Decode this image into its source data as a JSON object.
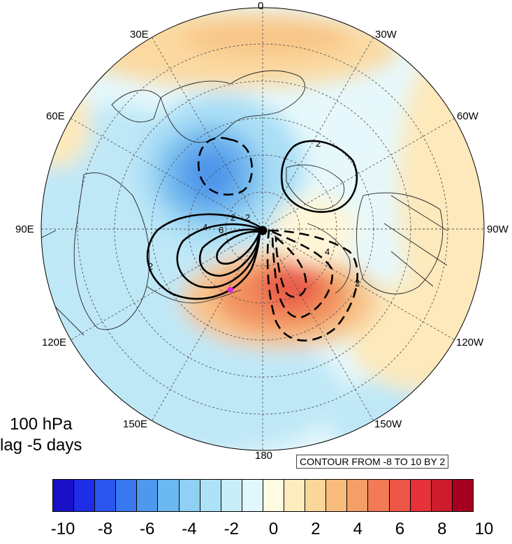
{
  "title": {
    "level": "100 hPa",
    "lag": "lag -5 days"
  },
  "contour_note": "CONTOUR FROM -8 TO 10 BY 2",
  "longitude_labels": [
    "0",
    "30W",
    "60W",
    "90W",
    "120W",
    "150W",
    "180",
    "150E",
    "120E",
    "90E",
    "60E",
    "30E"
  ],
  "contour_labels": [
    "2",
    "2",
    "2",
    "4",
    "6",
    "2",
    "2",
    "4"
  ],
  "colorbar": {
    "ticks": [
      "-10",
      "-8",
      "-6",
      "-4",
      "-2",
      "0",
      "2",
      "4",
      "6",
      "8",
      "10"
    ],
    "colors": [
      "#1a10c8",
      "#1e2ee6",
      "#2a55ee",
      "#3a78ef",
      "#4f98ef",
      "#6cb8f0",
      "#8fd0f4",
      "#aee3f7",
      "#c9eefa",
      "#e2f7fb",
      "#fffbe2",
      "#fdedbe",
      "#fbd69a",
      "#f8bd7d",
      "#f59f68",
      "#f27b55",
      "#ee5646",
      "#e5313a",
      "#cc1c2e",
      "#a60020"
    ]
  },
  "colors": {
    "marker": "#e020e0",
    "contour_line": "#000000",
    "grid_line": "#555555"
  }
}
